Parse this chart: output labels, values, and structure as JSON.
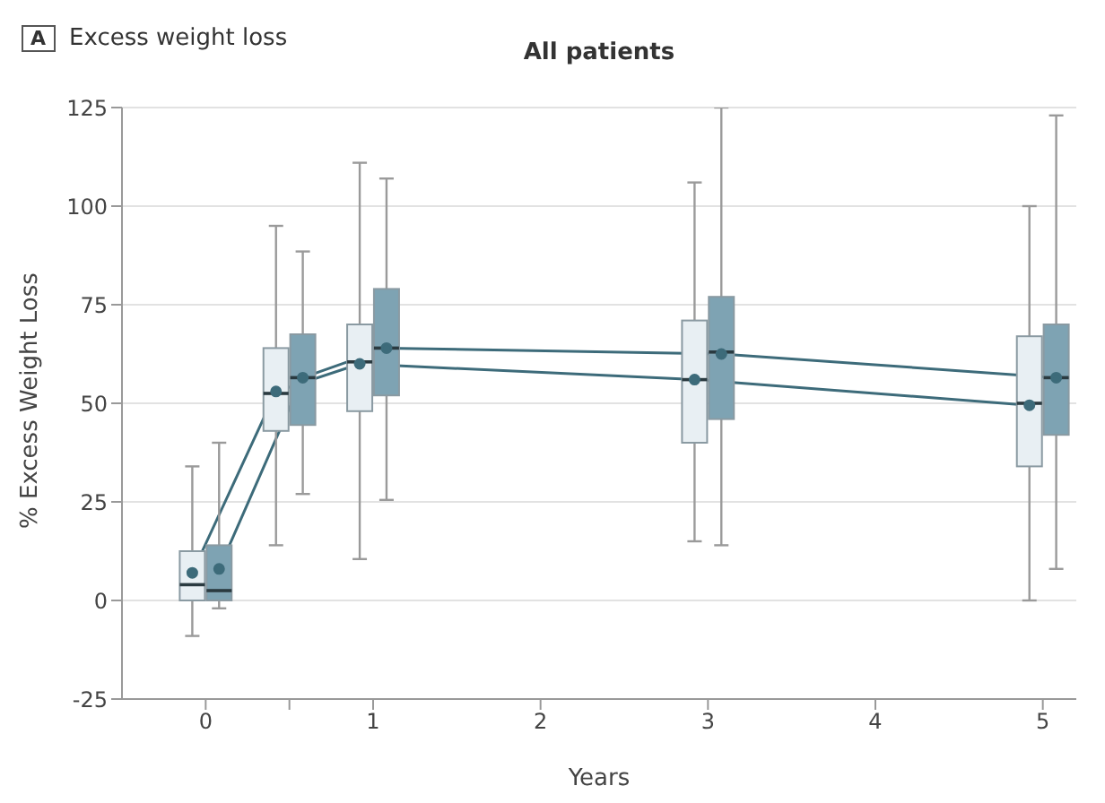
{
  "chart_data": {
    "type": "box",
    "title": "Excess weight loss",
    "subtitle": "All patients",
    "annotations": [
      "A"
    ],
    "xlabel": "Years",
    "ylabel": "% Excess Weight Loss",
    "xlim": [
      -0.5,
      5.2
    ],
    "xticks": [
      0,
      {
        "value": 0.5,
        "label": null
      },
      1,
      2,
      3,
      4,
      5
    ],
    "ylim": [
      -25,
      125
    ],
    "yticks": [
      -25,
      0,
      25,
      50,
      75,
      100,
      125
    ],
    "grid": "y",
    "marker": "circle",
    "line_style": "solid",
    "series": [
      {
        "color": "#e8eff3",
        "x": [
          -0.08,
          0.42,
          0.92,
          2.92,
          4.92
        ],
        "boxes": [
          {
            "low": -9,
            "q1": 0,
            "median": 4,
            "q3": 12.5,
            "high": 34
          },
          {
            "low": 14,
            "q1": 43,
            "median": 52.5,
            "q3": 64,
            "high": 95
          },
          {
            "low": 10.5,
            "q1": 48,
            "median": 60.5,
            "q3": 70,
            "high": 111
          },
          {
            "low": 15,
            "q1": 40,
            "median": 56,
            "q3": 71,
            "high": 106
          },
          {
            "low": 0,
            "q1": 34,
            "median": 50,
            "q3": 67,
            "high": 100
          }
        ]
      },
      {
        "color": "#7ea3b3",
        "x": [
          0.08,
          0.58,
          1.08,
          3.08,
          5.08
        ],
        "boxes": [
          {
            "low": -2,
            "q1": 0,
            "median": 2.5,
            "q3": 14,
            "high": 40
          },
          {
            "low": 27,
            "q1": 44.5,
            "median": 56.5,
            "q3": 67.5,
            "high": 88.5
          },
          {
            "low": 25.5,
            "q1": 52,
            "median": 64,
            "q3": 79,
            "high": 107
          },
          {
            "low": 14,
            "q1": 46,
            "median": 63,
            "q3": 77,
            "high": 125
          },
          {
            "low": 8,
            "q1": 42,
            "median": 56.5,
            "q3": 70,
            "high": 123
          }
        ]
      },
      {
        "type": "line",
        "color": "#3d6b7a",
        "x": [
          -0.08,
          0.42,
          0.92,
          2.92,
          4.92
        ],
        "values": [
          7,
          53,
          60,
          56,
          49.5
        ]
      },
      {
        "type": "line",
        "color": "#3d6b7a",
        "x": [
          0.08,
          0.58,
          1.08,
          3.08,
          5.08
        ],
        "values": [
          8,
          56.5,
          64,
          62.5,
          56.5
        ]
      }
    ]
  }
}
